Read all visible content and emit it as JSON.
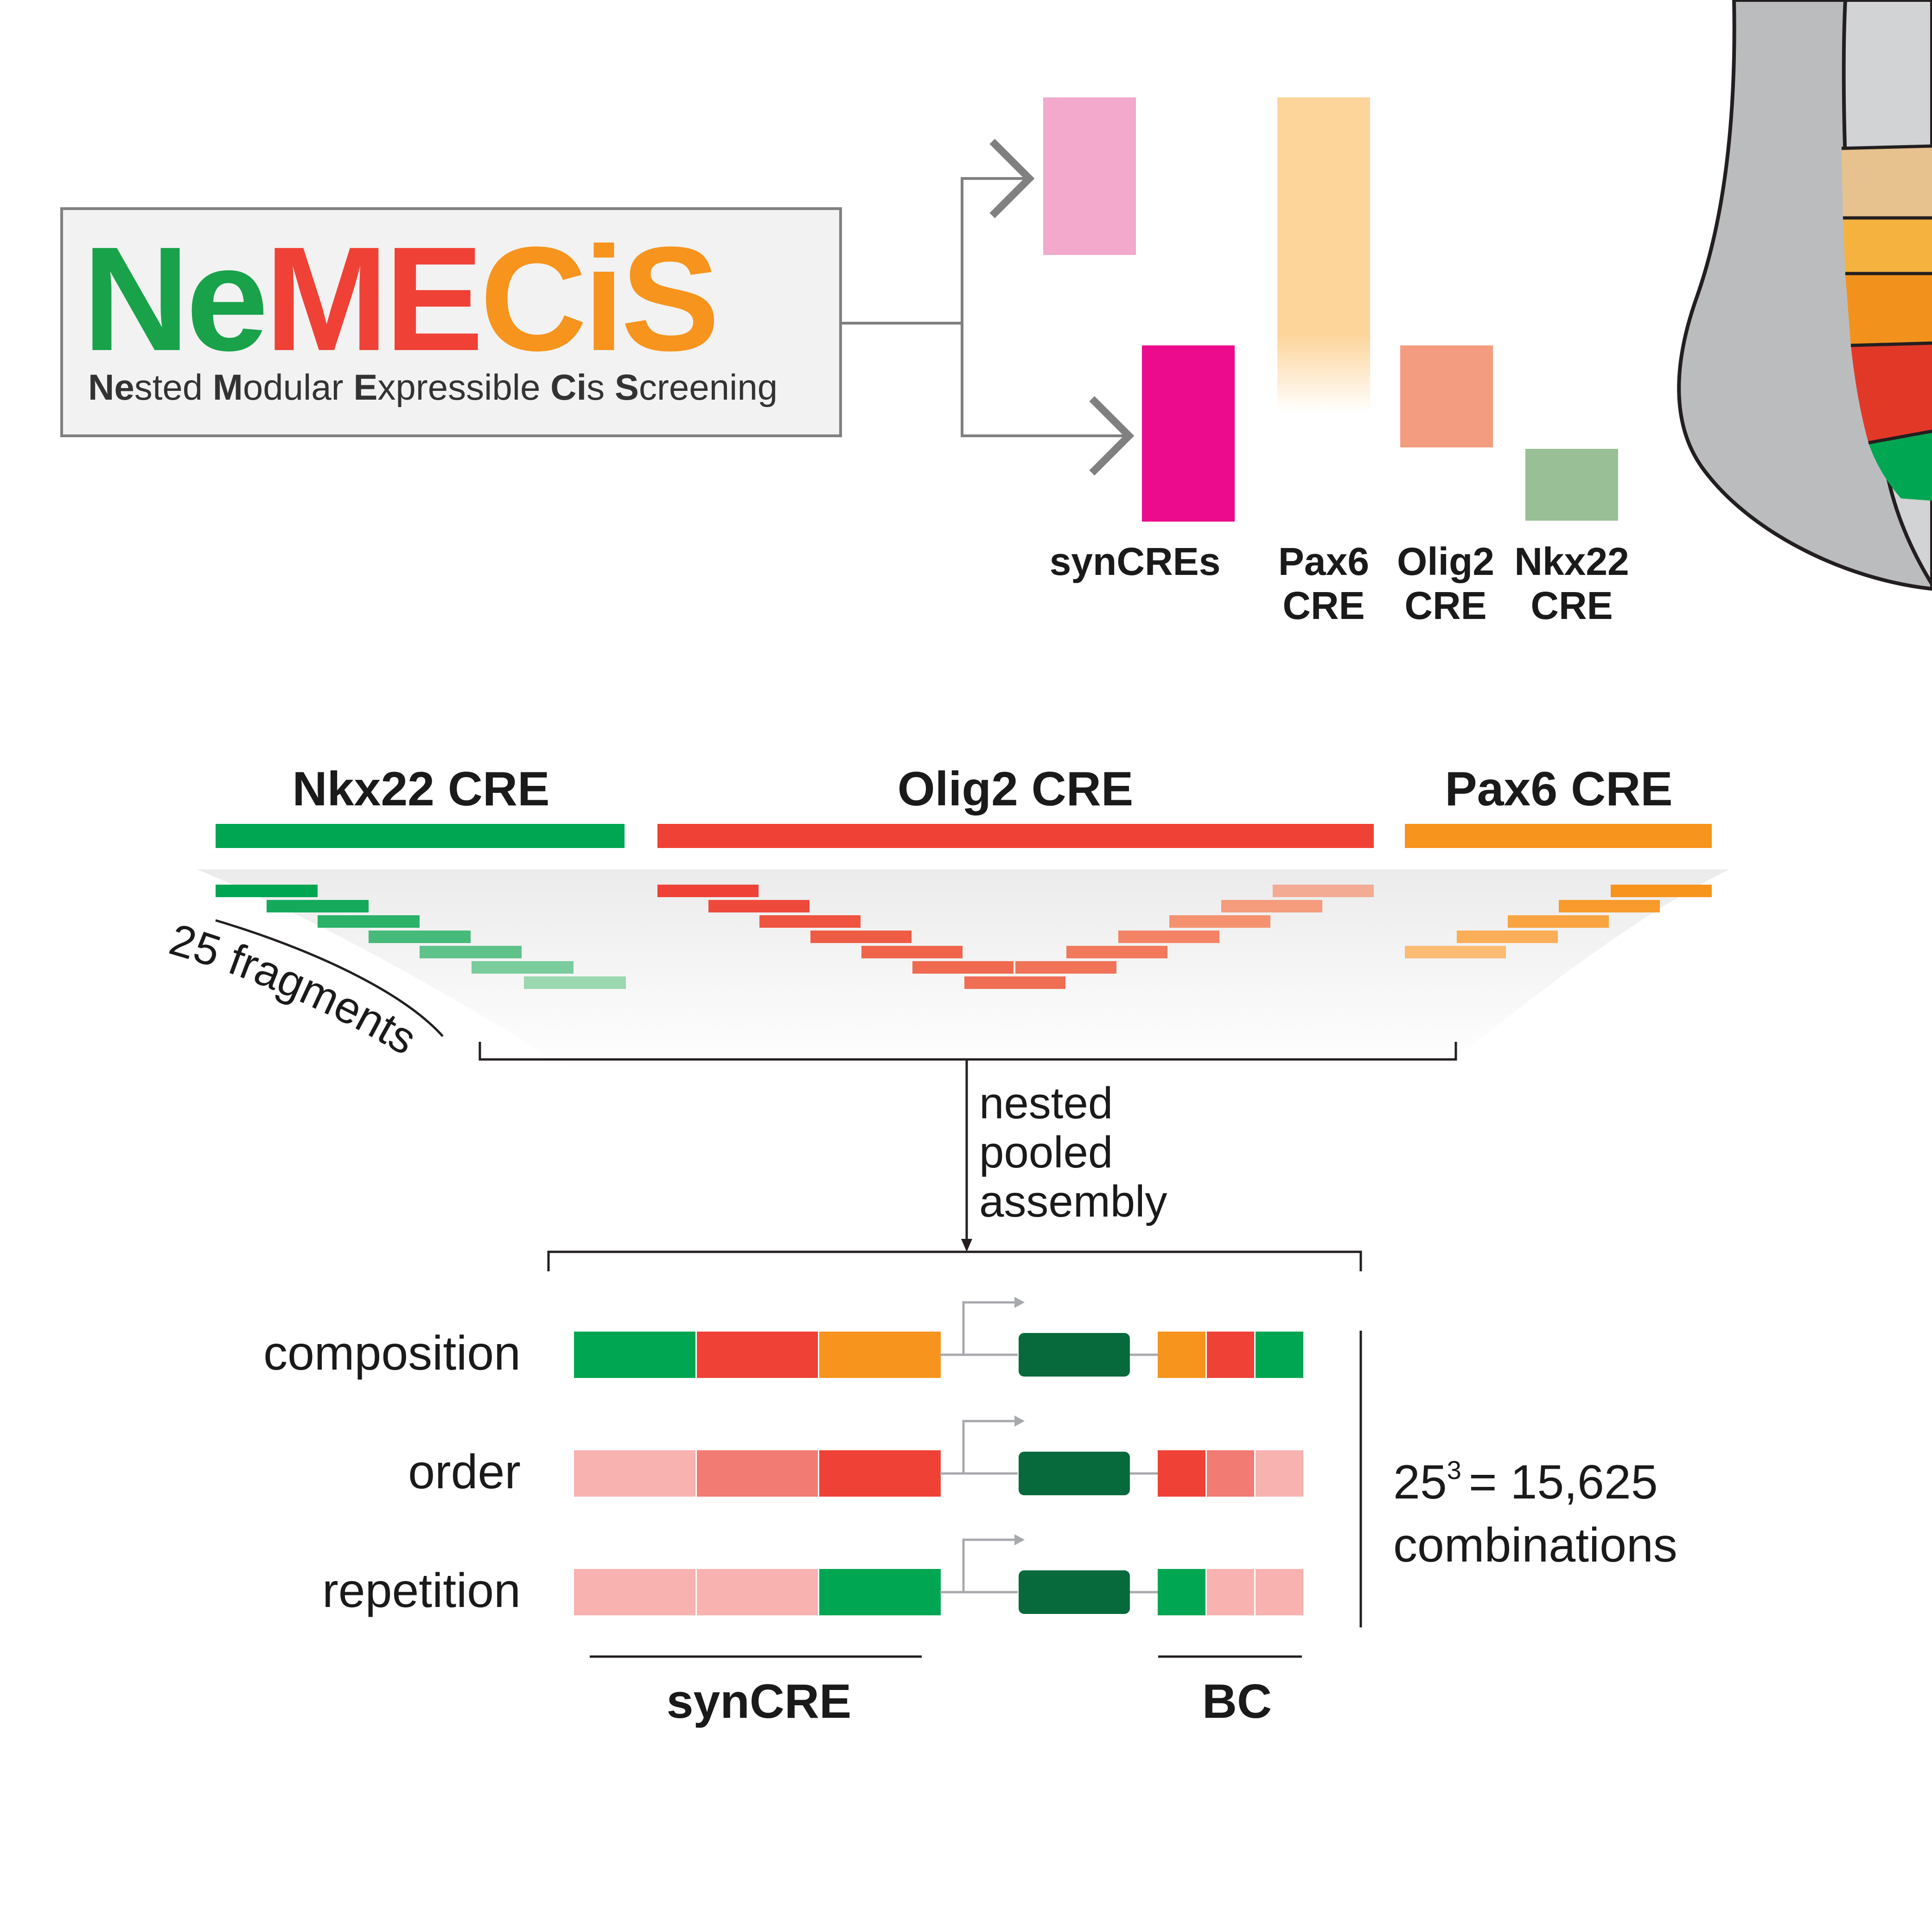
{
  "logo": {
    "letters": {
      "ne": "Ne",
      "me": "ME",
      "ci": "Ci",
      "s": "S"
    },
    "subtitle": [
      {
        "b": "Ne",
        "r": "sted "
      },
      {
        "b": "M",
        "r": "odular "
      },
      {
        "b": "E",
        "r": "xpressible "
      },
      {
        "b": "Ci",
        "r": "s "
      },
      {
        "b": "S",
        "r": "creening"
      }
    ]
  },
  "top_legend": {
    "syncres": "synCREs",
    "pax6": [
      "Pax6",
      "CRE"
    ],
    "olig2": [
      "Olig2",
      "CRE"
    ],
    "nkx22": [
      "Nkx22",
      "CRE"
    ]
  },
  "cre_titles": {
    "nkx22": "Nkx22 CRE",
    "olig2": "Olig2 CRE",
    "pax6": "Pax6 CRE"
  },
  "fragments_label": "25 fragments",
  "assembly_label": [
    "nested",
    "pooled",
    "assembly"
  ],
  "rows": [
    {
      "label": "composition",
      "cre": [
        "green",
        "red",
        "orange"
      ],
      "bc": [
        "orange",
        "red",
        "green"
      ]
    },
    {
      "label": "order",
      "cre": [
        "lightpink",
        "salmon",
        "red"
      ],
      "bc": [
        "red",
        "salmon",
        "lightpink"
      ]
    },
    {
      "label": "repetition",
      "cre": [
        "lightpink",
        "lightpink",
        "green"
      ],
      "bc": [
        "green",
        "lightpink",
        "lightpink"
      ]
    }
  ],
  "formula": {
    "base": "25",
    "exp": "3",
    "rest": "= 15,625",
    "line2": "combinations"
  },
  "bottom_labels": {
    "syncre": "synCRE",
    "bc": "BC"
  },
  "colors": {
    "green": "#00a651",
    "red": "#ef4136",
    "orange": "#f7941d",
    "orange_light": "#f9a23a",
    "lightpink": "#f8b2b0",
    "salmon": "#f27b74",
    "reporter": "#076a3c",
    "pink_light": "#f2a9cb",
    "magenta": "#ec0b8d",
    "peach": "#fdd49a",
    "olig_block": "#f49c7f",
    "nkx_block": "#99bf96",
    "gray_line": "#808080",
    "logo_box_bg": "#f2f2f2",
    "neural_gray": "#bbbcbe",
    "neural_inner": "#d1d3d4"
  }
}
